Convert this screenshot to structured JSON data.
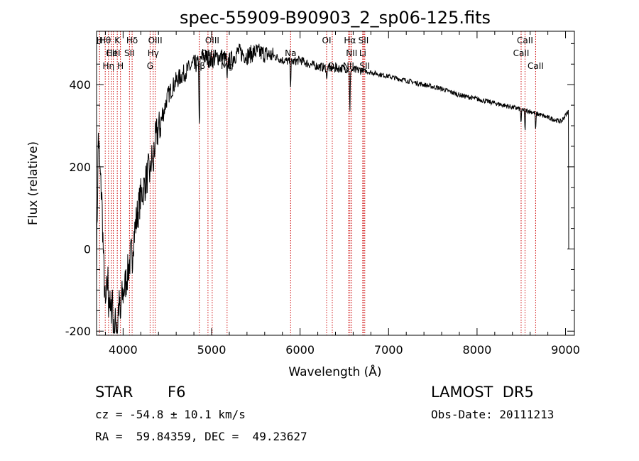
{
  "chart_data": {
    "type": "line",
    "title": "spec-55909-B90903_2_sp06-125.fits",
    "xlabel": "Wavelength (Å)",
    "ylabel": "Flux (relative)",
    "xlim": [
      3700,
      9100
    ],
    "ylim": [
      -210,
      530
    ],
    "xticks": [
      4000,
      5000,
      6000,
      7000,
      8000,
      9000
    ],
    "yticks": [
      -200,
      0,
      200,
      400
    ],
    "grid": false,
    "line_color": "#000000",
    "marker_color": "#cc0000",
    "spectrum_anchors": [
      [
        3700,
        -40
      ],
      [
        3720,
        280
      ],
      [
        3740,
        180
      ],
      [
        3760,
        120
      ],
      [
        3780,
        -40
      ],
      [
        3800,
        -150
      ],
      [
        3830,
        -60
      ],
      [
        3860,
        -170
      ],
      [
        3880,
        -100
      ],
      [
        3900,
        -195
      ],
      [
        3950,
        -140
      ],
      [
        4000,
        -110
      ],
      [
        4050,
        -60
      ],
      [
        4100,
        0
      ],
      [
        4150,
        70
      ],
      [
        4200,
        130
      ],
      [
        4250,
        160
      ],
      [
        4300,
        200
      ],
      [
        4340,
        230
      ],
      [
        4380,
        280
      ],
      [
        4420,
        300
      ],
      [
        4500,
        370
      ],
      [
        4600,
        410
      ],
      [
        4700,
        430
      ],
      [
        4800,
        450
      ],
      [
        4861,
        450
      ],
      [
        4900,
        470
      ],
      [
        5000,
        460
      ],
      [
        5100,
        470
      ],
      [
        5200,
        455
      ],
      [
        5300,
        480
      ],
      [
        5400,
        470
      ],
      [
        5500,
        480
      ],
      [
        5600,
        475
      ],
      [
        5700,
        470
      ],
      [
        5800,
        460
      ],
      [
        5900,
        455
      ],
      [
        6000,
        460
      ],
      [
        6100,
        450
      ],
      [
        6200,
        445
      ],
      [
        6300,
        440
      ],
      [
        6400,
        440
      ],
      [
        6500,
        440
      ],
      [
        6600,
        435
      ],
      [
        6700,
        435
      ],
      [
        6800,
        430
      ],
      [
        7000,
        420
      ],
      [
        7200,
        410
      ],
      [
        7400,
        400
      ],
      [
        7600,
        390
      ],
      [
        7800,
        375
      ],
      [
        8000,
        365
      ],
      [
        8200,
        355
      ],
      [
        8400,
        345
      ],
      [
        8600,
        335
      ],
      [
        8800,
        320
      ],
      [
        8950,
        310
      ],
      [
        9030,
        335
      ]
    ],
    "absorption_dips": [
      [
        3835,
        60
      ],
      [
        3889,
        80
      ],
      [
        3934,
        90
      ],
      [
        3970,
        70
      ],
      [
        4102,
        60
      ],
      [
        4305,
        40
      ],
      [
        4340,
        60
      ],
      [
        4861,
        180
      ],
      [
        5175,
        70
      ],
      [
        5893,
        60
      ],
      [
        6300,
        30
      ],
      [
        6563,
        120
      ],
      [
        8498,
        40
      ],
      [
        8542,
        60
      ],
      [
        8662,
        50
      ]
    ],
    "line_markers": [
      {
        "wavelength": 3734,
        "label": "H",
        "row": 0
      },
      {
        "wavelength": 3798,
        "label": "Hθ",
        "row": 0
      },
      {
        "wavelength": 3835,
        "label": "Hη",
        "row": 2
      },
      {
        "wavelength": 3869,
        "label": "CII",
        "row": 1
      },
      {
        "wavelength": 3889,
        "label": "HeI",
        "row": 1
      },
      {
        "wavelength": 3934,
        "label": "K",
        "row": 0
      },
      {
        "wavelength": 3970,
        "label": "H",
        "row": 2
      },
      {
        "wavelength": 4072,
        "label": "SII",
        "row": 1
      },
      {
        "wavelength": 4102,
        "label": "Hδ",
        "row": 0
      },
      {
        "wavelength": 4305,
        "label": "G",
        "row": 2
      },
      {
        "wavelength": 4340,
        "label": "Hγ",
        "row": 1
      },
      {
        "wavelength": 4363,
        "label": "OIII",
        "row": 0
      },
      {
        "wavelength": 4861,
        "label": "Hβ",
        "row": 2
      },
      {
        "wavelength": 4959,
        "label": "OIII",
        "row": 1
      },
      {
        "wavelength": 5007,
        "label": "OIII",
        "row": 0
      },
      {
        "wavelength": 5175,
        "label": "Mg",
        "row": 2
      },
      {
        "wavelength": 5893,
        "label": "Na",
        "row": 1
      },
      {
        "wavelength": 6300,
        "label": "OI",
        "row": 0
      },
      {
        "wavelength": 6364,
        "label": "OI",
        "row": 2
      },
      {
        "wavelength": 6548,
        "label": "NII",
        "row": 2
      },
      {
        "wavelength": 6563,
        "label": "Hα",
        "row": 0
      },
      {
        "wavelength": 6583,
        "label": "NII",
        "row": 1
      },
      {
        "wavelength": 6708,
        "label": "Li",
        "row": 1
      },
      {
        "wavelength": 6717,
        "label": "SII",
        "row": 0
      },
      {
        "wavelength": 6731,
        "label": "SII",
        "row": 2
      },
      {
        "wavelength": 8498,
        "label": "CaII",
        "row": 1
      },
      {
        "wavelength": 8542,
        "label": "CaII",
        "row": 0
      },
      {
        "wavelength": 8662,
        "label": "CaII",
        "row": 2
      }
    ]
  },
  "info": {
    "object_type": "STAR",
    "subclass": "F6",
    "survey": "LAMOST  DR5",
    "redshift_line": "cz = -54.8 ± 10.1 km/s",
    "obs_date_line": "Obs-Date: 20111213",
    "coords_line": "RA =  59.84359, DEC =  49.23627"
  }
}
